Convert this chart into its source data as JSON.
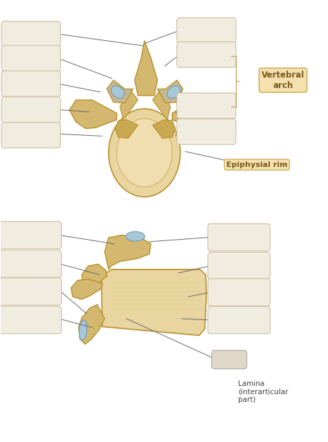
{
  "bg_color": "#ffffff",
  "label_box_color": "#f0ece0",
  "label_box_edge": "#ccbfa0",
  "label_text_color": "#555555",
  "annotation_color": "#c8a870",
  "line_color": "#666666",
  "fig_width": 4.74,
  "fig_height": 6.38,
  "bone_fill": "#d4b870",
  "bone_edge": "#b8902a",
  "body_fill": "#e8d5a0",
  "body_inner": "#f0ddb0",
  "cart_fill": "#a8c8d8",
  "cart_edge": "#7098b8",
  "arch_label": "Vertebral\narch",
  "arch_label_color": "#7a5a1a",
  "arch_label_bg": "#f5e0b0",
  "arch_label_edge": "#c8a040",
  "epiphysial_label": "Epiphysial rim",
  "interarticular_label": "Lamina\n(interarticular\npart)"
}
